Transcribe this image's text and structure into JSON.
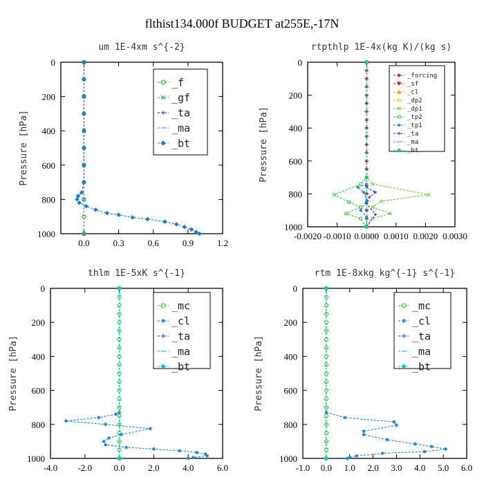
{
  "title": "flthist134.000f  BUDGET at255E,-17N",
  "chart_data": [
    {
      "type": "line",
      "title": "um  1E-4xm s^{-2}",
      "ylabel": "Pressure [hPa]",
      "xlim": [
        -0.2,
        1.2
      ],
      "ylim": [
        1000,
        0
      ],
      "xticks": [
        0.0,
        0.3,
        0.6,
        0.9,
        1.2
      ],
      "xticklabels": [
        "0.0",
        "0.3",
        "0.6",
        "0.9",
        "1.2"
      ],
      "yticks": [
        0,
        200,
        400,
        600,
        800,
        1000
      ],
      "yticklabels": [
        "0",
        "200",
        "400",
        "600",
        "800",
        "1000"
      ],
      "legend": "top-right",
      "series": [
        {
          "name": "_f",
          "color": "#2ca02c",
          "marker": "circle",
          "points": [
            [
              0,
              0
            ],
            [
              0,
              100
            ],
            [
              0,
              200
            ],
            [
              0,
              300
            ],
            [
              0,
              400
            ],
            [
              0,
              500
            ],
            [
              0,
              600
            ],
            [
              0,
              700
            ],
            [
              0,
              800
            ],
            [
              0,
              900
            ],
            [
              0,
              1000
            ]
          ]
        },
        {
          "name": "_gf",
          "color": "#1f9e89",
          "marker": "x",
          "points": [
            [
              0,
              0
            ],
            [
              0,
              200
            ],
            [
              0,
              400
            ],
            [
              0,
              600
            ],
            [
              0,
              800
            ],
            [
              0,
              1000
            ]
          ]
        },
        {
          "name": "_ta",
          "color": "#2222cc",
          "marker": "plus",
          "points": [
            [
              0,
              0
            ],
            [
              0,
              1000
            ]
          ]
        },
        {
          "name": "_ma",
          "color": "#33aaee",
          "marker": "dash",
          "points": [
            [
              0,
              0
            ],
            [
              0,
              1000
            ]
          ]
        },
        {
          "name": "_bt",
          "color": "#1a7fd6",
          "marker": "diamond",
          "points": [
            [
              0,
              0
            ],
            [
              0,
              100
            ],
            [
              0,
              200
            ],
            [
              0,
              300
            ],
            [
              0,
              400
            ],
            [
              0,
              500
            ],
            [
              0,
              600
            ],
            [
              0,
              700
            ],
            [
              -0.02,
              760
            ],
            [
              -0.05,
              780
            ],
            [
              -0.06,
              800
            ],
            [
              -0.04,
              820
            ],
            [
              0.02,
              840
            ],
            [
              0.1,
              860
            ],
            [
              0.2,
              880
            ],
            [
              0.3,
              890
            ],
            [
              0.42,
              905
            ],
            [
              0.55,
              915
            ],
            [
              0.7,
              930
            ],
            [
              0.8,
              945
            ],
            [
              0.87,
              960
            ],
            [
              0.93,
              975
            ],
            [
              0.97,
              990
            ],
            [
              1.0,
              1000
            ]
          ]
        }
      ]
    },
    {
      "type": "line",
      "title": "rtpthlp  1E-4x(kg K)/(kg s)",
      "ylabel": "Pressure [hPa]",
      "xlim": [
        -0.002,
        0.003
      ],
      "ylim": [
        1000,
        0
      ],
      "xticks": [
        -0.002,
        -0.001,
        0.0,
        0.001,
        0.002,
        0.003
      ],
      "xticklabels": [
        "-0.0020",
        "-0.0010",
        "0.0000",
        "0.0010",
        "0.0020",
        "0.0030"
      ],
      "yticks": [
        0,
        200,
        400,
        600,
        800,
        1000
      ],
      "yticklabels": [
        "0",
        "200",
        "400",
        "600",
        "800",
        "1000"
      ],
      "legend": "top-right",
      "series": [
        {
          "name": "_forcing",
          "color": "#e31a1c",
          "marker": "diamond",
          "points": [
            [
              0,
              0
            ],
            [
              0,
              50
            ],
            [
              0,
              100
            ],
            [
              0,
              150
            ],
            [
              0,
              200
            ],
            [
              0,
              250
            ],
            [
              0,
              300
            ],
            [
              0,
              350
            ],
            [
              0,
              400
            ],
            [
              0,
              450
            ],
            [
              0,
              500
            ],
            [
              0,
              550
            ],
            [
              0,
              600
            ],
            [
              0,
              650
            ],
            [
              0,
              700
            ],
            [
              0,
              750
            ],
            [
              0,
              800
            ],
            [
              0,
              850
            ],
            [
              0,
              900
            ],
            [
              0,
              950
            ],
            [
              0,
              1000
            ]
          ]
        },
        {
          "name": "_sf",
          "color": "#e31a1c",
          "marker": "tri-down",
          "points": [
            [
              0,
              0
            ],
            [
              0,
              1000
            ]
          ]
        },
        {
          "name": "_cl",
          "color": "#ff9900",
          "marker": "tri-up",
          "points": [
            [
              0,
              0
            ],
            [
              0,
              1000
            ]
          ]
        },
        {
          "name": "_dp2",
          "color": "#ffcc00",
          "marker": "circle",
          "points": [
            [
              0,
              0
            ],
            [
              0,
              1000
            ]
          ]
        },
        {
          "name": "_dp1",
          "color": "#66cc33",
          "marker": "x",
          "points": [
            [
              0,
              0
            ],
            [
              0,
              700
            ],
            [
              0.0002,
              740
            ],
            [
              0.0021,
              805
            ],
            [
              0.0005,
              845
            ],
            [
              0.0002,
              880
            ],
            [
              0.0008,
              920
            ],
            [
              0.0002,
              950
            ],
            [
              0,
              1000
            ]
          ]
        },
        {
          "name": "_tp2",
          "color": "#33cc33",
          "marker": "circle",
          "points": [
            [
              0,
              0
            ],
            [
              0,
              700
            ],
            [
              -0.0002,
              740
            ],
            [
              -0.0011,
              805
            ],
            [
              -0.0006,
              850
            ],
            [
              -0.0002,
              880
            ],
            [
              -0.0007,
              920
            ],
            [
              -0.0002,
              950
            ],
            [
              0,
              1000
            ]
          ]
        },
        {
          "name": "_tp1",
          "color": "#1a7fd6",
          "marker": "asterisk",
          "points": [
            [
              0,
              740
            ],
            [
              -0.0003,
              760
            ],
            [
              -0.0001,
              790
            ],
            [
              0,
              840
            ],
            [
              -0.0002,
              900
            ],
            [
              0,
              940
            ],
            [
              0,
              1000
            ]
          ]
        },
        {
          "name": "_ta",
          "color": "#2222cc",
          "marker": "plus",
          "points": [
            [
              0,
              760
            ],
            [
              0.0003,
              790
            ],
            [
              0.0001,
              820
            ],
            [
              0,
              860
            ],
            [
              0.0003,
              925
            ],
            [
              0,
              1000
            ]
          ]
        },
        {
          "name": "_ma",
          "color": "#33aaee",
          "marker": "dash",
          "points": [
            [
              0,
              0
            ],
            [
              0,
              1000
            ]
          ]
        },
        {
          "name": "_bt",
          "color": "#00cccc",
          "marker": "diamond",
          "points": [
            [
              0,
              0
            ],
            [
              0,
              1000
            ]
          ]
        }
      ]
    },
    {
      "type": "line",
      "title": "thlm  1E-5xK s^{-1}",
      "ylabel": "Pressure [hPa]",
      "xlim": [
        -4.0,
        6.0
      ],
      "ylim": [
        1000,
        0
      ],
      "xticks": [
        -4.0,
        -2.0,
        0.0,
        2.0,
        4.0,
        6.0
      ],
      "xticklabels": [
        "-4.0",
        "-2.0",
        "0.0",
        "2.0",
        "4.0",
        "6.0"
      ],
      "yticks": [
        0,
        200,
        400,
        600,
        800,
        1000
      ],
      "yticklabels": [
        "0",
        "200",
        "400",
        "600",
        "800",
        "1000"
      ],
      "legend": "top-right",
      "series": [
        {
          "name": "_mc",
          "color": "#33cc33",
          "marker": "circle",
          "points": [
            [
              0,
              0
            ],
            [
              0,
              50
            ],
            [
              0,
              100
            ],
            [
              0,
              150
            ],
            [
              0,
              200
            ],
            [
              0,
              250
            ],
            [
              0,
              300
            ],
            [
              0,
              350
            ],
            [
              0,
              400
            ],
            [
              0,
              450
            ],
            [
              0,
              500
            ],
            [
              0,
              550
            ],
            [
              0,
              600
            ],
            [
              0,
              650
            ],
            [
              0,
              700
            ],
            [
              0,
              750
            ],
            [
              0,
              800
            ],
            [
              0,
              850
            ],
            [
              0,
              900
            ],
            [
              0,
              950
            ],
            [
              0,
              1000
            ]
          ]
        },
        {
          "name": "_cl",
          "color": "#1a7fd6",
          "marker": "asterisk",
          "points": [
            [
              0,
              730
            ],
            [
              -0.2,
              740
            ],
            [
              -1.2,
              760
            ],
            [
              -3.1,
              780
            ],
            [
              -0.8,
              800
            ],
            [
              1.8,
              825
            ],
            [
              0.1,
              860
            ],
            [
              -0.6,
              880
            ],
            [
              -0.9,
              900
            ],
            [
              -0.8,
              920
            ],
            [
              0.4,
              935
            ],
            [
              2.0,
              945
            ],
            [
              3.5,
              955
            ],
            [
              4.5,
              965
            ],
            [
              5.0,
              975
            ],
            [
              5.1,
              985
            ],
            [
              4.3,
              995
            ],
            [
              4.0,
              1000
            ]
          ]
        },
        {
          "name": "_ta",
          "color": "#2222cc",
          "marker": "plus",
          "points": [
            [
              0,
              0
            ],
            [
              0,
              1000
            ]
          ]
        },
        {
          "name": "_ma",
          "color": "#33aaee",
          "marker": "dash",
          "points": [
            [
              0,
              0
            ],
            [
              0,
              1000
            ]
          ]
        },
        {
          "name": "_bt",
          "color": "#00cccc",
          "marker": "diamond",
          "points": [
            [
              0,
              0
            ],
            [
              0,
              1000
            ]
          ]
        }
      ]
    },
    {
      "type": "line",
      "title": "rtm  1E-8xkg kg^{-1} s^{-1}",
      "ylabel": "Pressure [hPa]",
      "xlim": [
        -1.0,
        6.0
      ],
      "ylim": [
        1000,
        0
      ],
      "xticks": [
        -1.0,
        0.0,
        1.0,
        2.0,
        3.0,
        4.0,
        5.0,
        6.0
      ],
      "xticklabels": [
        "-1.0",
        "0.0",
        "1.0",
        "2.0",
        "3.0",
        "4.0",
        "5.0",
        "6.0"
      ],
      "yticks": [
        0,
        200,
        400,
        600,
        800,
        1000
      ],
      "yticklabels": [
        "0",
        "200",
        "400",
        "600",
        "800",
        "1000"
      ],
      "legend": "top-right",
      "series": [
        {
          "name": "_mc",
          "color": "#33cc33",
          "marker": "circle",
          "points": [
            [
              0,
              0
            ],
            [
              0,
              50
            ],
            [
              0,
              100
            ],
            [
              0,
              150
            ],
            [
              0,
              200
            ],
            [
              0,
              250
            ],
            [
              0,
              300
            ],
            [
              0,
              350
            ],
            [
              0,
              400
            ],
            [
              0,
              450
            ],
            [
              0,
              500
            ],
            [
              0,
              550
            ],
            [
              0,
              600
            ],
            [
              0,
              650
            ],
            [
              0,
              700
            ],
            [
              0,
              750
            ],
            [
              0,
              800
            ],
            [
              0,
              850
            ],
            [
              0,
              900
            ],
            [
              0,
              950
            ],
            [
              0,
              1000
            ]
          ]
        },
        {
          "name": "_cl",
          "color": "#1a7fd6",
          "marker": "asterisk",
          "points": [
            [
              0,
              730
            ],
            [
              0.8,
              760
            ],
            [
              2.9,
              785
            ],
            [
              3.0,
              805
            ],
            [
              1.6,
              840
            ],
            [
              1.6,
              860
            ],
            [
              2.6,
              890
            ],
            [
              3.8,
              915
            ],
            [
              4.5,
              930
            ],
            [
              5.1,
              945
            ],
            [
              4.2,
              960
            ],
            [
              2.4,
              970
            ],
            [
              1.3,
              985
            ],
            [
              1.0,
              995
            ],
            [
              0.9,
              1000
            ]
          ]
        },
        {
          "name": "_ta",
          "color": "#2222cc",
          "marker": "plus",
          "points": [
            [
              0,
              0
            ],
            [
              0,
              1000
            ]
          ]
        },
        {
          "name": "_ma",
          "color": "#33aaee",
          "marker": "dash",
          "points": [
            [
              0,
              0
            ],
            [
              0,
              1000
            ]
          ]
        },
        {
          "name": "_bt",
          "color": "#00cccc",
          "marker": "diamond",
          "points": [
            [
              0,
              0
            ],
            [
              0,
              1000
            ]
          ]
        }
      ]
    }
  ]
}
